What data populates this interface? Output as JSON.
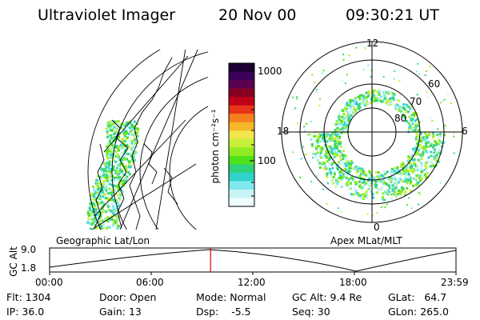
{
  "header": {
    "instrument": "Ultraviolet Imager",
    "date": "20 Nov 00",
    "time": "09:30:21 UT"
  },
  "colorbar": {
    "unit_label": "photon cm⁻²s⁻¹",
    "ticks": [
      "1000",
      "100"
    ],
    "colors": [
      "#1a0033",
      "#3b005a",
      "#5a0050",
      "#8a0022",
      "#c00018",
      "#e8341a",
      "#f57f1d",
      "#f5b62a",
      "#f2e64a",
      "#c6f03a",
      "#8fec22",
      "#4fe21a",
      "#2fd27a",
      "#30d2cc",
      "#7fe8ee",
      "#c8f4f6",
      "#eefbfc"
    ]
  },
  "geo_panel": {
    "label": "Geographic Lat/Lon"
  },
  "polar_panel": {
    "label": "Apex MLat/MLT",
    "mlt_labels": [
      "12",
      "18",
      "6",
      "0"
    ],
    "lat_labels": [
      "60",
      "70",
      "80"
    ]
  },
  "orbit_plot": {
    "ylabel": "GC Alt",
    "y_ticks": [
      "9.0",
      "1.8"
    ],
    "x_ticks": [
      "00:00",
      "06:00",
      "12:00",
      "18:00",
      "23:59"
    ],
    "current_time_fraction": 0.396
  },
  "info": {
    "row1": [
      {
        "label": "Flt:",
        "value": "1304"
      },
      {
        "label": "Door:",
        "value": "Open"
      },
      {
        "label": "Mode:",
        "value": "Normal"
      },
      {
        "label": "GC Alt:",
        "value": "9.4 Re"
      },
      {
        "label": "GLat:",
        "value": "64.7"
      }
    ],
    "row2": [
      {
        "label": "IP:",
        "value": "36.0"
      },
      {
        "label": "Gain:",
        "value": "13"
      },
      {
        "label": "Dsp:",
        "value": "-5.5"
      },
      {
        "label": "Seq:",
        "value": "30"
      },
      {
        "label": "GLon:",
        "value": "265.0"
      }
    ]
  }
}
